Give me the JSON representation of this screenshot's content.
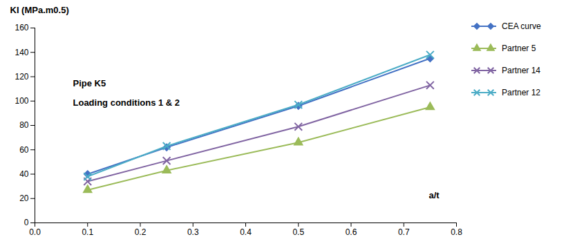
{
  "chart_data": {
    "type": "line",
    "ylabel": "KI (MPa.m0.5)",
    "xlabel": "a/t",
    "annotations": [
      "Pipe K5",
      "Loading conditions 1 & 2"
    ],
    "x": [
      0.1,
      0.25,
      0.5,
      0.75
    ],
    "xlim": [
      0,
      0.8
    ],
    "ylim": [
      0,
      160
    ],
    "xticks": [
      {
        "value": 0,
        "label": "0.0"
      },
      0.1,
      0.2,
      0.3,
      0.4,
      0.5,
      0.6,
      0.7,
      0.8
    ],
    "yticks": [
      0,
      20,
      40,
      60,
      80,
      100,
      120,
      140,
      160
    ],
    "grid": false,
    "legend": "right",
    "series": [
      {
        "name": "CEA curve",
        "color": "#4472C4",
        "marker": "diamond",
        "values": [
          40,
          62,
          96,
          135
        ]
      },
      {
        "name": "Partner 5",
        "color": "#9BBB59",
        "marker": "triangle",
        "values": [
          27,
          43,
          66,
          95
        ]
      },
      {
        "name": "Partner 14",
        "color": "#8064A2",
        "marker": "x",
        "values": [
          34,
          51,
          79,
          113
        ]
      },
      {
        "name": "Partner 12",
        "color": "#4BACC6",
        "marker": "x",
        "values": [
          38,
          63,
          97,
          138
        ]
      }
    ]
  }
}
